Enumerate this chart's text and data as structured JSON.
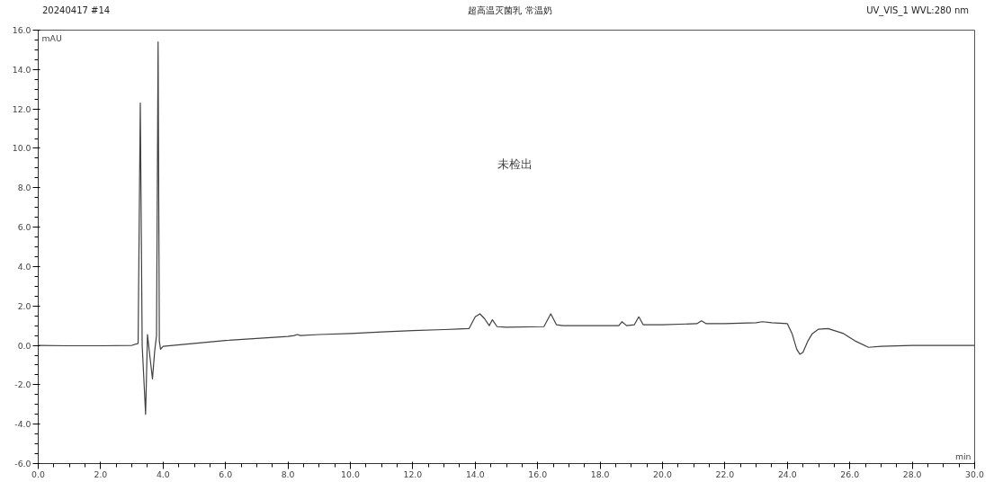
{
  "chart_data": {
    "type": "line",
    "title": "超高温灭菌乳 常温奶",
    "xlabel": "min",
    "ylabel": "mAU",
    "annotations": [
      "20240417 #14",
      "UV_VIS_1 WVL:280 nm",
      "未检出"
    ],
    "series": [
      {
        "color": "#404040",
        "x": [
          0.0,
          1.0,
          2.0,
          3.0,
          3.2,
          3.27,
          3.33,
          3.44,
          3.5,
          3.58,
          3.66,
          3.73,
          3.79,
          3.84,
          3.88,
          3.92,
          4.0,
          5.0,
          6.0,
          7.0,
          8.0,
          8.2,
          8.3,
          8.4,
          9.0,
          10.0,
          11.0,
          12.0,
          13.0,
          13.8,
          14.0,
          14.15,
          14.3,
          14.45,
          14.55,
          14.7,
          15.0,
          16.2,
          16.42,
          16.6,
          16.8,
          17.5,
          18.6,
          18.7,
          18.85,
          19.1,
          19.24,
          19.38,
          20.0,
          21.1,
          21.25,
          21.4,
          22.0,
          23.0,
          23.2,
          23.5,
          24.0,
          24.15,
          24.3,
          24.4,
          24.5,
          24.65,
          24.8,
          25.0,
          25.3,
          25.8,
          26.2,
          26.6,
          27.0,
          28.0,
          29.0,
          30.0
        ],
        "values": [
          0.0,
          -0.02,
          -0.02,
          0.0,
          0.1,
          12.3,
          0.0,
          -3.5,
          0.55,
          -0.6,
          -1.7,
          -0.3,
          0.5,
          15.4,
          0.2,
          -0.2,
          -0.05,
          0.1,
          0.25,
          0.35,
          0.45,
          0.5,
          0.55,
          0.5,
          0.55,
          0.6,
          0.68,
          0.75,
          0.8,
          0.85,
          1.45,
          1.6,
          1.35,
          1.0,
          1.3,
          0.95,
          0.92,
          0.95,
          1.6,
          1.05,
          1.0,
          1.0,
          1.0,
          1.2,
          1.0,
          1.05,
          1.45,
          1.05,
          1.05,
          1.1,
          1.25,
          1.1,
          1.1,
          1.15,
          1.2,
          1.15,
          1.1,
          0.6,
          -0.2,
          -0.45,
          -0.35,
          0.2,
          0.6,
          0.82,
          0.85,
          0.6,
          0.2,
          -0.1,
          -0.05,
          0.0,
          0.0,
          0.0
        ]
      }
    ],
    "xlim": [
      0,
      30
    ],
    "ylim": [
      -6,
      16
    ],
    "xticks": [
      {
        "value": 0,
        "label": "0.0"
      },
      {
        "value": 2,
        "label": "2.0"
      },
      {
        "value": 4,
        "label": "4.0"
      },
      {
        "value": 6,
        "label": "6.0"
      },
      {
        "value": 8,
        "label": "8.0"
      },
      {
        "value": 10,
        "label": "10.0"
      },
      {
        "value": 12,
        "label": "12.0"
      },
      {
        "value": 14,
        "label": "14.0"
      },
      {
        "value": 16,
        "label": "16.0"
      },
      {
        "value": 18,
        "label": "18.0"
      },
      {
        "value": 20,
        "label": "20.0"
      },
      {
        "value": 22,
        "label": "22.0"
      },
      {
        "value": 24,
        "label": "24.0"
      },
      {
        "value": 26,
        "label": "26.0"
      },
      {
        "value": 28,
        "label": "28.0"
      },
      {
        "value": 30,
        "label": "30.0"
      }
    ],
    "yticks": [
      {
        "value": -6,
        "label": "-6.0"
      },
      {
        "value": -4,
        "label": "-4.0"
      },
      {
        "value": -2,
        "label": "-2.0"
      },
      {
        "value": 0,
        "label": "0.0"
      },
      {
        "value": 2,
        "label": "2.0"
      },
      {
        "value": 4,
        "label": "4.0"
      },
      {
        "value": 6,
        "label": "6.0"
      },
      {
        "value": 8,
        "label": "8.0"
      },
      {
        "value": 10,
        "label": "10.0"
      },
      {
        "value": 12,
        "label": "12.0"
      },
      {
        "value": 14,
        "label": "14.0"
      },
      {
        "value": 16,
        "label": "16.0"
      }
    ],
    "grid": false
  }
}
